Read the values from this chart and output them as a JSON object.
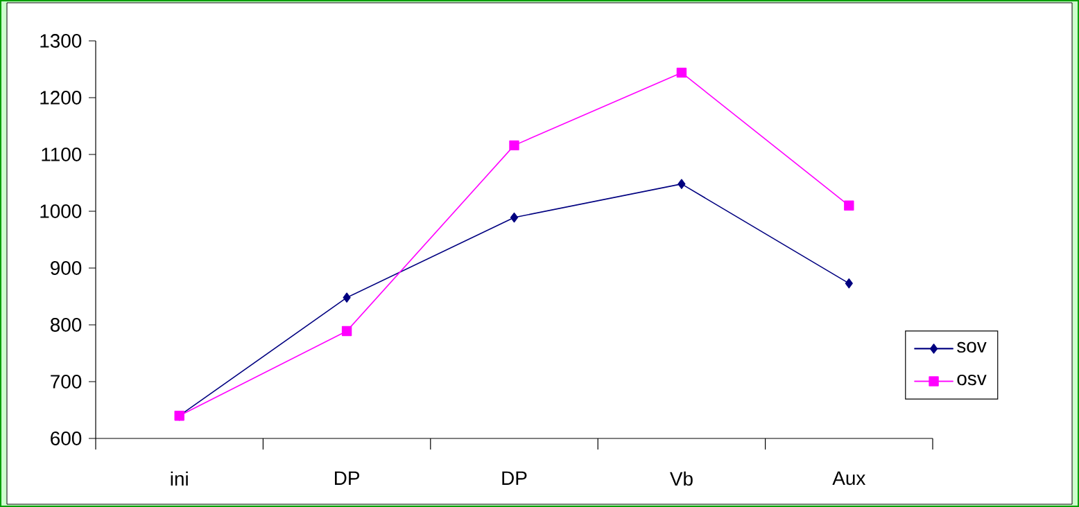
{
  "chart_data": {
    "type": "line",
    "categories": [
      "ini",
      "DP",
      "DP",
      "Vb",
      "Aux"
    ],
    "series": [
      {
        "name": "sov",
        "color": "#000080",
        "marker": "diamond",
        "values": [
          640,
          848,
          989,
          1048,
          873
        ]
      },
      {
        "name": "osv",
        "color": "#ff00ff",
        "marker": "square",
        "values": [
          640,
          789,
          1116,
          1244,
          1010
        ]
      }
    ],
    "ylim": [
      600,
      1300
    ],
    "yticks": [
      600,
      700,
      800,
      900,
      1000,
      1100,
      1200,
      1300
    ],
    "grid": false,
    "legend": "right",
    "line_style": "solid"
  }
}
